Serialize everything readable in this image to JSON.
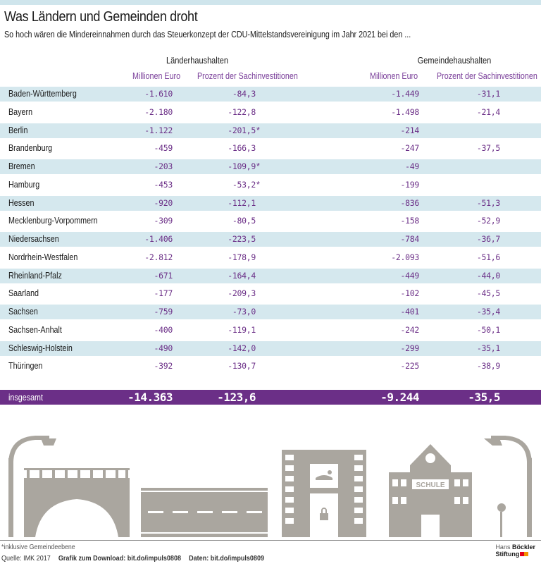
{
  "title": "Was Ländern und Gemeinden droht",
  "subtitle": "So hoch wären die Mindereinnahmen durch das Steuerkonzept der CDU-Mittelstandsvereinigung im Jahr 2021 bei den ...",
  "groups": {
    "laender": "Länderhaushalten",
    "gemeinden": "Gemeindehaushalten"
  },
  "columns": {
    "mio": "Millionen Euro",
    "prozent": "Prozent der Sachinvestitionen"
  },
  "rows": [
    {
      "name": "Baden-Württemberg",
      "l_mio": "-1.610",
      "l_pct": "-84,3",
      "l_note": "",
      "g_mio": "-1.449",
      "g_pct": "-31,1"
    },
    {
      "name": "Bayern",
      "l_mio": "-2.180",
      "l_pct": "-122,8",
      "l_note": "",
      "g_mio": "-1.498",
      "g_pct": "-21,4"
    },
    {
      "name": "Berlin",
      "l_mio": "-1.122",
      "l_pct": "-201,5",
      "l_note": "*",
      "g_mio": "-214",
      "g_pct": ""
    },
    {
      "name": "Brandenburg",
      "l_mio": "-459",
      "l_pct": "-166,3",
      "l_note": "",
      "g_mio": "-247",
      "g_pct": "-37,5"
    },
    {
      "name": "Bremen",
      "l_mio": "-203",
      "l_pct": "-109,9",
      "l_note": "*",
      "g_mio": "-49",
      "g_pct": ""
    },
    {
      "name": "Hamburg",
      "l_mio": "-453",
      "l_pct": "-53,2",
      "l_note": "*",
      "g_mio": "-199",
      "g_pct": ""
    },
    {
      "name": "Hessen",
      "l_mio": "-920",
      "l_pct": "-112,1",
      "l_note": "",
      "g_mio": "-836",
      "g_pct": "-51,3"
    },
    {
      "name": "Mecklenburg-Vorpommern",
      "l_mio": "-309",
      "l_pct": "-80,5",
      "l_note": "",
      "g_mio": "-158",
      "g_pct": "-52,9"
    },
    {
      "name": "Niedersachsen",
      "l_mio": "-1.406",
      "l_pct": "-223,5",
      "l_note": "",
      "g_mio": "-784",
      "g_pct": "-36,7"
    },
    {
      "name": "Nordrhein-Westfalen",
      "l_mio": "-2.812",
      "l_pct": "-178,9",
      "l_note": "",
      "g_mio": "-2.093",
      "g_pct": "-51,6"
    },
    {
      "name": "Rheinland-Pfalz",
      "l_mio": "-671",
      "l_pct": "-164,4",
      "l_note": "",
      "g_mio": "-449",
      "g_pct": "-44,0"
    },
    {
      "name": "Saarland",
      "l_mio": "-177",
      "l_pct": "-209,3",
      "l_note": "",
      "g_mio": "-102",
      "g_pct": "-45,5"
    },
    {
      "name": "Sachsen",
      "l_mio": "-759",
      "l_pct": "-73,0",
      "l_note": "",
      "g_mio": "-401",
      "g_pct": "-35,4"
    },
    {
      "name": "Sachsen-Anhalt",
      "l_mio": "-400",
      "l_pct": "-119,1",
      "l_note": "",
      "g_mio": "-242",
      "g_pct": "-50,1"
    },
    {
      "name": "Schleswig-Holstein",
      "l_mio": "-490",
      "l_pct": "-142,0",
      "l_note": "",
      "g_mio": "-299",
      "g_pct": "-35,1"
    },
    {
      "name": "Thüringen",
      "l_mio": "-392",
      "l_pct": "-130,7",
      "l_note": "",
      "g_mio": "-225",
      "g_pct": "-38,9"
    }
  ],
  "total": {
    "name": "insgesamt",
    "l_mio": "-14.363",
    "l_pct": "-123,6",
    "g_mio": "-9.244",
    "g_pct": "-35,5"
  },
  "illustration": {
    "school_sign": "SCHULE",
    "icons": [
      "street-lamp",
      "bridge",
      "road",
      "swimming-pool-building",
      "school-building",
      "street-lamp"
    ]
  },
  "footnote": "*inklusive Gemeindeebene",
  "source": {
    "quelle": "Quelle: IMK 2017",
    "download": "Grafik zum Download: bit.do/impuls0808",
    "daten": "Daten: bit.do/impuls0809"
  },
  "logo": {
    "line1a": "Hans",
    "line1b": "Böckler",
    "line2": "Stiftung"
  },
  "colors": {
    "accent": "#6b2f87",
    "row_shade": "#d5e8ee",
    "top_bar": "#cfe5ec",
    "illustration": "#aaa69f",
    "logo_red": "#e2001a",
    "logo_orange": "#f39200"
  }
}
